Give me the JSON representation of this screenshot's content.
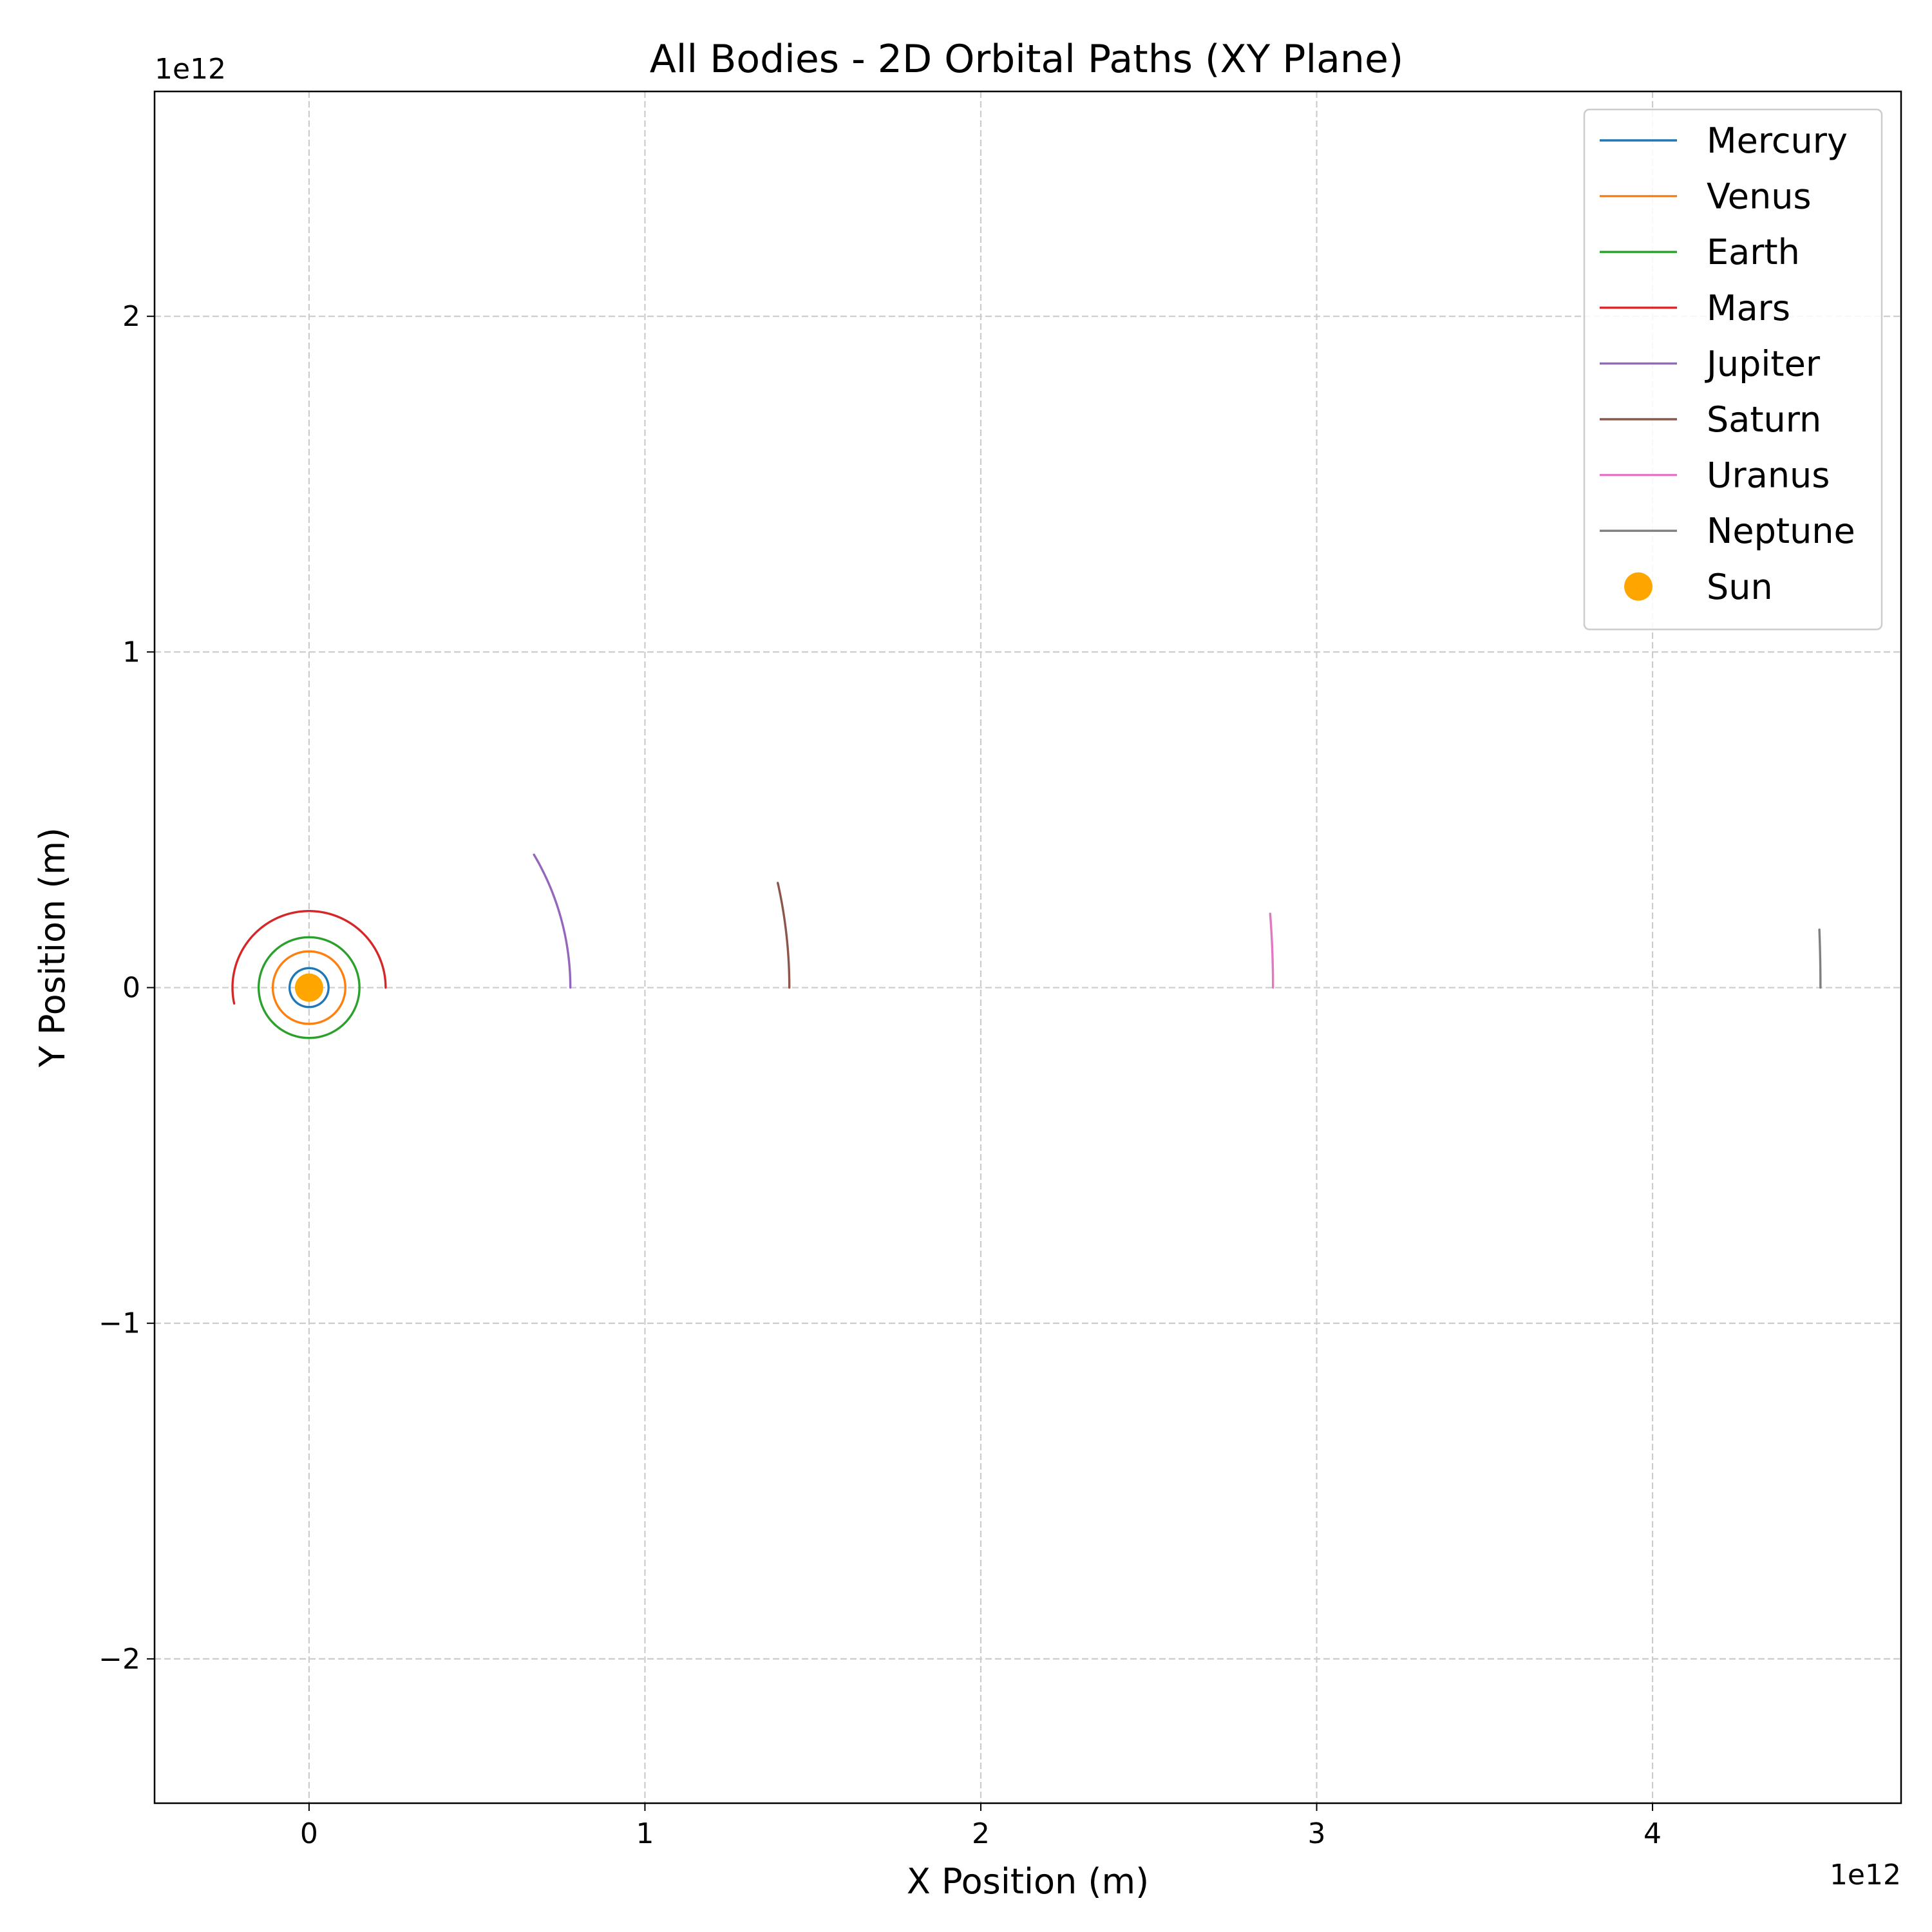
{
  "chart_data": {
    "type": "line",
    "title": "All Bodies - 2D Orbital Paths (XY Plane)",
    "xlabel": "X Position (m)",
    "ylabel": "Y Position (m)",
    "x_exponent_label": "1e12",
    "y_exponent_label": "1e12",
    "x_scale": 1000000000000.0,
    "y_scale": 1000000000000.0,
    "xlim": [
      -460000000000.0,
      4740000000000.0
    ],
    "ylim": [
      -2430000000000.0,
      2670000000000.0
    ],
    "xticks": [
      0,
      1000000000000.0,
      2000000000000.0,
      3000000000000.0,
      4000000000000.0
    ],
    "xtick_labels": [
      "0",
      "1",
      "2",
      "3",
      "4"
    ],
    "yticks": [
      -2000000000000.0,
      -1000000000000.0,
      0,
      1000000000000.0,
      2000000000000.0
    ],
    "ytick_labels": [
      "−2",
      "−1",
      "0",
      "1",
      "2"
    ],
    "grid": true,
    "legend_position": "top-right",
    "series": [
      {
        "name": "Mercury",
        "color": "#1f77b4",
        "radius": 58000000000.0,
        "start_angle_deg": 0,
        "end_angle_deg": 360
      },
      {
        "name": "Venus",
        "color": "#ff7f0e",
        "radius": 108000000000.0,
        "start_angle_deg": 0,
        "end_angle_deg": 360
      },
      {
        "name": "Earth",
        "color": "#2ca02c",
        "radius": 150000000000.0,
        "start_angle_deg": 0,
        "end_angle_deg": 360
      },
      {
        "name": "Mars",
        "color": "#d62728",
        "radius": 228000000000.0,
        "start_angle_deg": 0,
        "end_angle_deg": 192
      },
      {
        "name": "Jupiter",
        "color": "#9467bd",
        "radius": 778000000000.0,
        "start_angle_deg": 0,
        "end_angle_deg": 30.6
      },
      {
        "name": "Saturn",
        "color": "#8c564b",
        "radius": 1430000000000.0,
        "start_angle_deg": 0,
        "end_angle_deg": 12.6
      },
      {
        "name": "Uranus",
        "color": "#e377c2",
        "radius": 2870000000000.0,
        "start_angle_deg": 0,
        "end_angle_deg": 4.4
      },
      {
        "name": "Neptune",
        "color": "#7f7f7f",
        "radius": 4500000000000.0,
        "start_angle_deg": 0,
        "end_angle_deg": 2.2
      }
    ],
    "sun": {
      "name": "Sun",
      "color": "#ffa500",
      "x": 0,
      "y": 0
    }
  }
}
